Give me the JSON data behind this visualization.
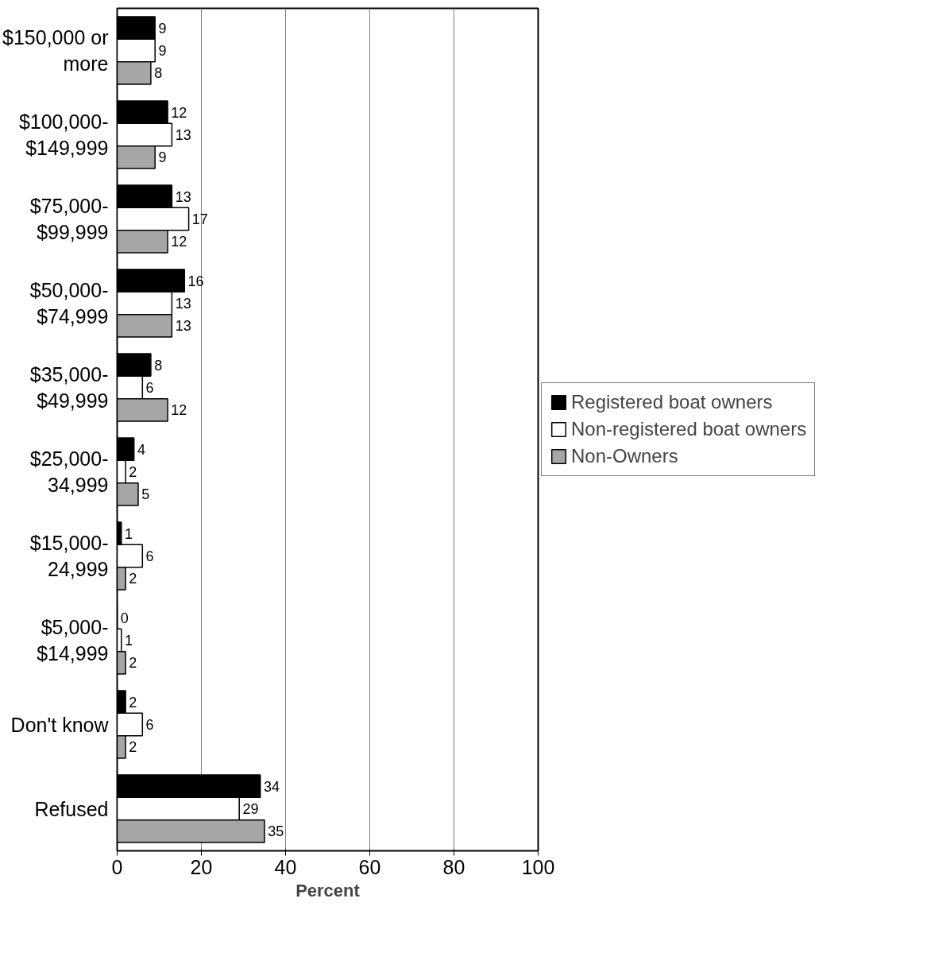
{
  "chart_data": {
    "type": "bar",
    "orientation": "horizontal",
    "xlabel": "Percent",
    "categories": [
      "$150,000 or more",
      "$100,000-$149,999",
      "$75,000-$99,999",
      "$50,000-$74,999",
      "$35,000-$49,999",
      "$25,000-34,999",
      "$15,000-24,999",
      "$5,000-$14,999",
      "Don't know",
      "Refused"
    ],
    "series": [
      {
        "name": "Registered boat owners",
        "color": "#000000",
        "values": [
          9,
          12,
          13,
          16,
          8,
          4,
          1,
          0,
          2,
          34
        ]
      },
      {
        "name": "Non-registered boat owners",
        "color": "#ffffff",
        "values": [
          9,
          13,
          17,
          13,
          6,
          2,
          6,
          1,
          6,
          29
        ]
      },
      {
        "name": "Non-Owners",
        "color": "#a6a6a6",
        "values": [
          8,
          9,
          12,
          13,
          12,
          5,
          2,
          2,
          2,
          35
        ]
      }
    ],
    "xlim": [
      0,
      100
    ],
    "xticks": [
      0,
      20,
      40,
      60,
      80,
      100
    ],
    "grid": "x",
    "legend": "right",
    "data_labels": true
  }
}
